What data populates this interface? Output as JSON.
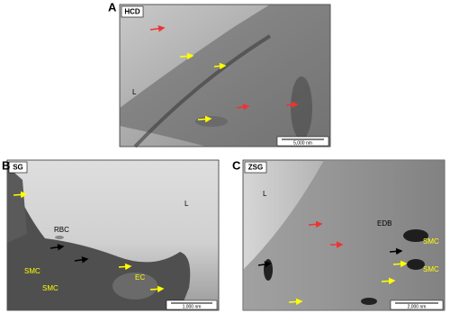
{
  "panels": [
    {
      "letter": "A",
      "tag": "HCD",
      "labels": [
        "L"
      ],
      "scale_bar": "5,000 nm"
    },
    {
      "letter": "B",
      "tag": "SG",
      "labels": [
        "RBC",
        "L",
        "SMC",
        "SMC",
        "EC"
      ],
      "scale_bar": "1,000 nm"
    },
    {
      "letter": "C",
      "tag": "ZSG",
      "labels": [
        "L",
        "EDB",
        "SMC",
        "SMC"
      ],
      "scale_bar": "2,000 nm"
    }
  ]
}
